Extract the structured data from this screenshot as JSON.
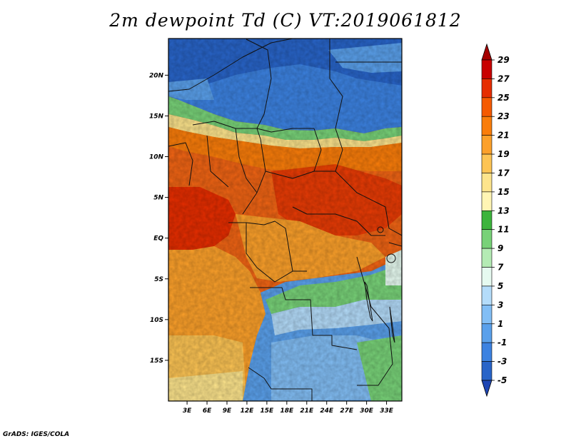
{
  "title": "2m dewpoint Td (C) VT:2019061812",
  "credit": "GrADS: IGES/COLA",
  "lat_ticks": [
    {
      "label": "20N",
      "value": 20
    },
    {
      "label": "15N",
      "value": 15
    },
    {
      "label": "10N",
      "value": 10
    },
    {
      "label": "5N",
      "value": 5
    },
    {
      "label": "EQ",
      "value": 0
    },
    {
      "label": "5S",
      "value": -5
    },
    {
      "label": "10S",
      "value": -10
    },
    {
      "label": "15S",
      "value": -15
    }
  ],
  "lon_ticks": [
    {
      "label": "3E",
      "value": 3
    },
    {
      "label": "6E",
      "value": 6
    },
    {
      "label": "9E",
      "value": 9
    },
    {
      "label": "12E",
      "value": 12
    },
    {
      "label": "15E",
      "value": 15
    },
    {
      "label": "18E",
      "value": 18
    },
    {
      "label": "21E",
      "value": 21
    },
    {
      "label": "24E",
      "value": 24
    },
    {
      "label": "27E",
      "value": 27
    },
    {
      "label": "30E",
      "value": 30
    },
    {
      "label": "33E",
      "value": 33
    }
  ],
  "extent": {
    "lon_min": 0.2,
    "lon_max": 35.3,
    "lat_min": -20.0,
    "lat_max": 24.5
  },
  "colorbar": {
    "labels": [
      "29",
      "27",
      "25",
      "23",
      "21",
      "19",
      "17",
      "15",
      "13",
      "11",
      "9",
      "7",
      "5",
      "3",
      "1",
      "-1",
      "-3",
      "-5"
    ],
    "colors": [
      "#a50000",
      "#c80000",
      "#e62d00",
      "#f55a00",
      "#fa7d0a",
      "#fca02a",
      "#fdc454",
      "#fde48c",
      "#fff5b4",
      "#3cb43c",
      "#78d278",
      "#b4ebb4",
      "#e6faf0",
      "#b4dcfa",
      "#82bef5",
      "#5aa0eb",
      "#3c82e1",
      "#2864c8",
      "#1e46b4"
    ]
  }
}
